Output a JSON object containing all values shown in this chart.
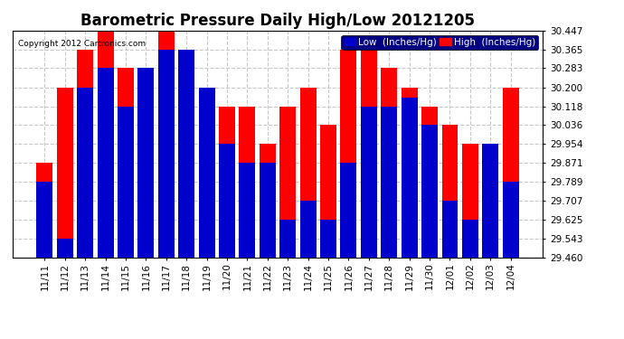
{
  "title": "Barometric Pressure Daily High/Low 20121205",
  "copyright": "Copyright 2012 Cartronics.com",
  "labels": [
    "11/11",
    "11/12",
    "11/13",
    "11/14",
    "11/15",
    "11/16",
    "11/17",
    "11/18",
    "11/19",
    "11/20",
    "11/21",
    "11/22",
    "11/23",
    "11/24",
    "11/25",
    "11/26",
    "11/27",
    "11/28",
    "11/29",
    "11/30",
    "12/01",
    "12/02",
    "12/03",
    "12/04"
  ],
  "low": [
    29.789,
    29.543,
    30.2,
    30.283,
    30.118,
    30.283,
    30.365,
    30.365,
    30.2,
    29.954,
    29.871,
    29.871,
    29.625,
    29.707,
    29.625,
    29.871,
    30.118,
    30.118,
    30.154,
    30.036,
    29.707,
    29.625,
    29.954,
    29.789
  ],
  "high": [
    29.871,
    30.2,
    30.365,
    30.447,
    30.283,
    30.283,
    30.447,
    30.2,
    30.2,
    30.118,
    30.118,
    29.954,
    30.118,
    30.2,
    30.036,
    30.365,
    30.365,
    30.283,
    30.2,
    30.118,
    30.036,
    29.954,
    29.954,
    30.2
  ],
  "ylim_min": 29.46,
  "ylim_max": 30.447,
  "yticks": [
    29.46,
    29.543,
    29.625,
    29.707,
    29.789,
    29.871,
    29.954,
    30.036,
    30.118,
    30.2,
    30.283,
    30.365,
    30.447
  ],
  "low_color": "#0000cc",
  "high_color": "#ff0000",
  "bg_color": "#ffffff",
  "plot_bg_color": "#ffffff",
  "grid_color": "#c8c8c8",
  "title_fontsize": 12,
  "tick_fontsize": 7.5,
  "copyright_fontsize": 6.5,
  "legend_fontsize": 7.5
}
